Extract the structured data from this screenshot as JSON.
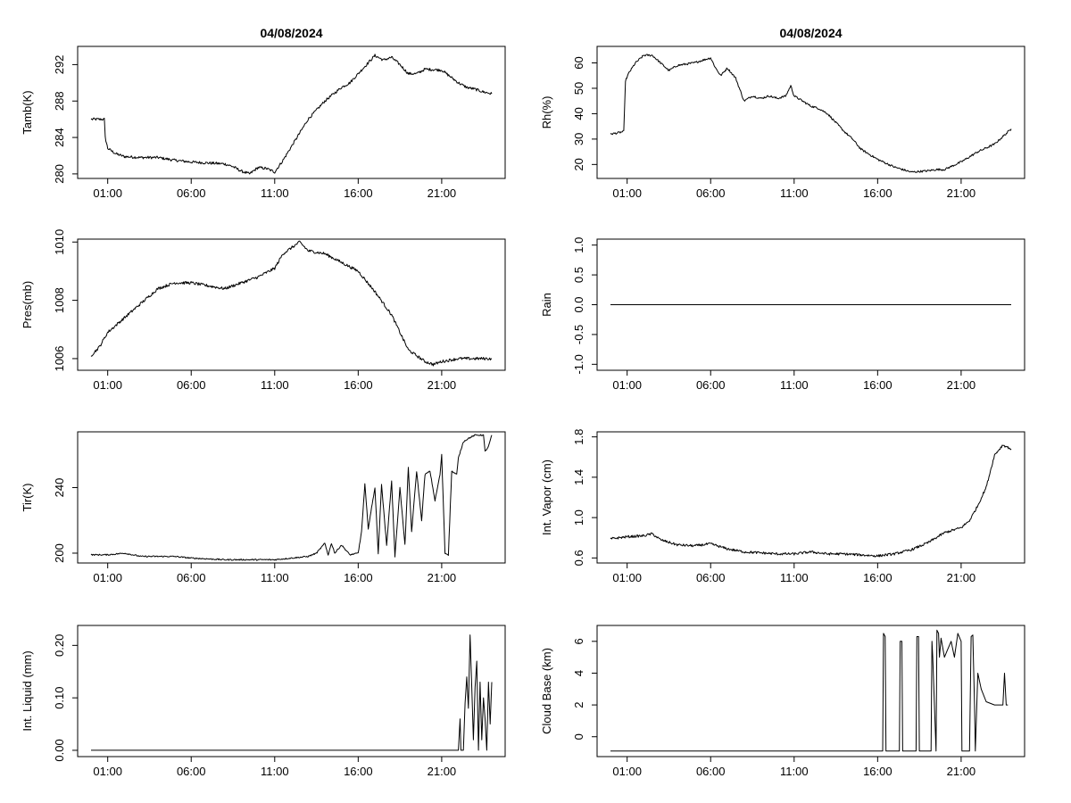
{
  "colors": {
    "background": "#ffffff",
    "line": "#000000"
  },
  "chart_data": [
    {
      "type": "line",
      "title": "04/08/2024",
      "ylabel": "Tamb(K)",
      "xlabel": "",
      "xlim": [
        -0.8,
        24.8
      ],
      "ylim": [
        279.5,
        294.0
      ],
      "xticks": [
        1,
        6,
        11,
        16,
        21
      ],
      "xticklabels": [
        "01:00",
        "06:00",
        "11:00",
        "16:00",
        "21:00"
      ],
      "yticks": [
        280,
        284,
        288,
        292
      ],
      "yticklabels": [
        "280",
        "284",
        "288",
        "292"
      ],
      "noise": 0.15,
      "series": [
        {
          "name": "Tamb",
          "x": [
            0,
            0.5,
            0.8,
            0.85,
            1.0,
            1.5,
            2,
            3,
            4,
            5,
            6,
            7,
            8,
            8.5,
            9.0,
            9.5,
            10.0,
            10.5,
            11.0,
            11.5,
            12,
            13,
            14,
            15,
            15.5,
            16,
            16.5,
            17,
            17.5,
            18,
            18.5,
            19,
            19.5,
            20,
            21,
            22,
            22.5,
            23,
            23.5,
            24
          ],
          "y": [
            286,
            286,
            286,
            284,
            282.8,
            282.2,
            281.9,
            281.8,
            281.8,
            281.5,
            281.3,
            281.2,
            281.1,
            280.8,
            280.3,
            280.0,
            280.7,
            280.6,
            280.2,
            281.5,
            283,
            286,
            288,
            289.5,
            290,
            291,
            292,
            293,
            292.5,
            292.8,
            292,
            291,
            291,
            291.5,
            291.4,
            290,
            289.5,
            289.3,
            289,
            288.8
          ]
        }
      ]
    },
    {
      "type": "line",
      "title": "04/08/2024",
      "ylabel": "Rh(%)",
      "xlabel": "",
      "xlim": [
        -0.8,
        24.8
      ],
      "ylim": [
        14.5,
        66.5
      ],
      "xticks": [
        1,
        6,
        11,
        16,
        21
      ],
      "xticklabels": [
        "01:00",
        "06:00",
        "11:00",
        "16:00",
        "21:00"
      ],
      "yticks": [
        20,
        30,
        40,
        50,
        60
      ],
      "yticklabels": [
        "20",
        "30",
        "40",
        "50",
        "60"
      ],
      "noise": 0.4,
      "series": [
        {
          "name": "Rh",
          "x": [
            0,
            0.5,
            0.8,
            0.9,
            1.1,
            1.5,
            2,
            2.5,
            3,
            3.5,
            4,
            5,
            6,
            6.3,
            6.6,
            7,
            7.5,
            8,
            8.5,
            9,
            9.5,
            10,
            10.5,
            10.8,
            11,
            12,
            12.5,
            13,
            14,
            14.5,
            15,
            16,
            17,
            18,
            19,
            19.5,
            20,
            21,
            22,
            23,
            24
          ],
          "y": [
            32,
            32.5,
            33,
            53,
            56,
            60,
            63,
            63,
            60,
            57,
            59,
            60,
            62,
            58,
            55,
            58,
            54,
            45,
            47,
            46,
            47,
            46,
            47,
            51,
            47,
            43,
            42,
            40,
            33,
            30,
            26,
            22,
            19,
            17,
            17.5,
            18,
            18,
            21,
            25,
            28,
            34
          ]
        }
      ]
    },
    {
      "type": "line",
      "title": "",
      "ylabel": "Pres(mb)",
      "xlabel": "",
      "xlim": [
        -0.8,
        24.8
      ],
      "ylim": [
        1005.6,
        1010.1
      ],
      "xticks": [
        1,
        6,
        11,
        16,
        21
      ],
      "xticklabels": [
        "01:00",
        "06:00",
        "11:00",
        "16:00",
        "21:00"
      ],
      "yticks": [
        1006,
        1008,
        1010
      ],
      "yticklabels": [
        "1006",
        "1008",
        "1010"
      ],
      "noise": 0.05,
      "series": [
        {
          "name": "Pres",
          "x": [
            0,
            0.5,
            1,
            2,
            3,
            4,
            5,
            6,
            7,
            8,
            9,
            10,
            11,
            11.5,
            12,
            12.5,
            13,
            14,
            15,
            16,
            17,
            18,
            18.5,
            19,
            20,
            20.5,
            21,
            22,
            23,
            24
          ],
          "y": [
            1006.1,
            1006.4,
            1006.9,
            1007.4,
            1007.9,
            1008.4,
            1008.6,
            1008.6,
            1008.5,
            1008.4,
            1008.6,
            1008.8,
            1009.1,
            1009.6,
            1009.8,
            1010.0,
            1009.7,
            1009.6,
            1009.3,
            1009.0,
            1008.3,
            1007.5,
            1006.9,
            1006.3,
            1005.9,
            1005.8,
            1005.9,
            1006.0,
            1006.0,
            1006.0
          ]
        }
      ]
    },
    {
      "type": "line",
      "title": "",
      "ylabel": "Rain",
      "xlabel": "",
      "xlim": [
        -0.8,
        24.8
      ],
      "ylim": [
        -1.1,
        1.1
      ],
      "xticks": [
        1,
        6,
        11,
        16,
        21
      ],
      "xticklabels": [
        "01:00",
        "06:00",
        "11:00",
        "16:00",
        "21:00"
      ],
      "yticks": [
        -1.0,
        -0.5,
        0.0,
        0.5,
        1.0
      ],
      "yticklabels": [
        "-1.0",
        "-0.5",
        "0.0",
        "0.5",
        "1.0"
      ],
      "noise": 0,
      "series": [
        {
          "name": "Rain",
          "x": [
            0,
            24
          ],
          "y": [
            0,
            0
          ]
        }
      ]
    },
    {
      "type": "line",
      "title": "",
      "ylabel": "Tir(K)",
      "xlabel": "",
      "xlim": [
        -0.8,
        24.8
      ],
      "ylim": [
        194,
        274
      ],
      "xticks": [
        1,
        6,
        11,
        16,
        21
      ],
      "xticklabels": [
        "01:00",
        "06:00",
        "11:00",
        "16:00",
        "21:00"
      ],
      "yticks": [
        200,
        240
      ],
      "yticklabels": [
        "200",
        "240"
      ],
      "noise": 0.4,
      "series": [
        {
          "name": "Tir",
          "x": [
            0,
            1,
            2,
            2.5,
            3,
            5,
            6,
            8,
            10,
            11,
            12,
            13,
            13.5,
            14,
            14.2,
            14.4,
            14.6,
            15,
            15.5,
            16,
            16.2,
            16.4,
            16.6,
            17,
            17.2,
            17.4,
            17.7,
            18,
            18.2,
            18.5,
            18.8,
            19,
            19.2,
            19.5,
            19.8,
            20,
            20.3,
            20.6,
            20.9,
            21,
            21.2,
            21.4,
            21.6,
            21.9,
            22,
            22.3,
            22.6,
            23,
            23.3,
            23.5,
            23.6,
            23.8,
            24
          ],
          "y": [
            199,
            199,
            200,
            199,
            198,
            198,
            197,
            196,
            196,
            196,
            197,
            198,
            200,
            206,
            199,
            206,
            200,
            205,
            199,
            200,
            213,
            242,
            215,
            240,
            200,
            242,
            205,
            244,
            198,
            240,
            205,
            252,
            213,
            250,
            220,
            248,
            250,
            232,
            248,
            260,
            200,
            199,
            250,
            248,
            258,
            268,
            270,
            272,
            272,
            272,
            262,
            265,
            272
          ]
        }
      ]
    },
    {
      "type": "line",
      "title": "",
      "ylabel": "Int. Vapor (cm)",
      "xlabel": "",
      "xlim": [
        -0.8,
        24.8
      ],
      "ylim": [
        0.55,
        1.85
      ],
      "xticks": [
        1,
        6,
        11,
        16,
        21
      ],
      "xticklabels": [
        "01:00",
        "06:00",
        "11:00",
        "16:00",
        "21:00"
      ],
      "yticks": [
        0.6,
        1.0,
        1.4,
        1.8
      ],
      "yticklabels": [
        "0.6",
        "1.0",
        "1.4",
        "1.8"
      ],
      "noise": 0.012,
      "series": [
        {
          "name": "IntVapor",
          "x": [
            0,
            1,
            2,
            2.5,
            3,
            4,
            5,
            6,
            7,
            8,
            9,
            10,
            11,
            12,
            13,
            14,
            15,
            16,
            17,
            18,
            19,
            20,
            21,
            21.5,
            22,
            22.5,
            23,
            23.5,
            24
          ],
          "y": [
            0.79,
            0.81,
            0.82,
            0.84,
            0.78,
            0.73,
            0.72,
            0.74,
            0.69,
            0.66,
            0.65,
            0.64,
            0.64,
            0.66,
            0.64,
            0.64,
            0.63,
            0.62,
            0.64,
            0.68,
            0.75,
            0.85,
            0.9,
            0.97,
            1.12,
            1.3,
            1.62,
            1.72,
            1.68
          ]
        }
      ]
    },
    {
      "type": "line",
      "title": "",
      "ylabel": "Int. Liquid (mm)",
      "xlabel": "",
      "xlim": [
        -0.8,
        24.8
      ],
      "ylim": [
        -0.012,
        0.238
      ],
      "xticks": [
        1,
        6,
        11,
        16,
        21
      ],
      "xticklabels": [
        "01:00",
        "06:00",
        "11:00",
        "16:00",
        "21:00"
      ],
      "yticks": [
        0.0,
        0.1,
        0.2
      ],
      "yticklabels": [
        "0.00",
        "0.10",
        "0.20"
      ],
      "noise": 0,
      "series": [
        {
          "name": "IntLiquid",
          "x": [
            0,
            22,
            22.1,
            22.15,
            22.3,
            22.4,
            22.5,
            22.6,
            22.7,
            22.8,
            22.9,
            23.0,
            23.1,
            23.2,
            23.3,
            23.4,
            23.5,
            23.6,
            23.7,
            23.8,
            23.9,
            24
          ],
          "y": [
            0,
            0,
            0.06,
            0,
            0.0,
            0.09,
            0.14,
            0.08,
            0.22,
            0.12,
            0.02,
            0.12,
            0.17,
            0.0,
            0.13,
            0.02,
            0.1,
            0.06,
            0.0,
            0.13,
            0.05,
            0.13
          ]
        }
      ]
    },
    {
      "type": "line",
      "title": "",
      "ylabel": "Cloud Base (km)",
      "xlabel": "",
      "xlim": [
        -0.8,
        24.8
      ],
      "ylim": [
        -1.25,
        7.0
      ],
      "xticks": [
        1,
        6,
        11,
        16,
        21
      ],
      "xticklabels": [
        "01:00",
        "06:00",
        "11:00",
        "16:00",
        "21:00"
      ],
      "yticks": [
        0,
        2,
        4,
        6
      ],
      "yticklabels": [
        "0",
        "2",
        "4",
        "6"
      ],
      "noise": 0,
      "series": [
        {
          "name": "CloudBase",
          "x": [
            0,
            16.3,
            16.35,
            16.45,
            16.5,
            17.3,
            17.35,
            17.45,
            17.5,
            18.3,
            18.35,
            18.45,
            18.5,
            19.2,
            19.25,
            19.3,
            19.5,
            19.55,
            19.65,
            19.7,
            19.8,
            20.0,
            20.2,
            20.4,
            20.6,
            20.8,
            21.0,
            21.05,
            21.1,
            21.5,
            21.6,
            21.7,
            21.8,
            21.85,
            22.0,
            22.2,
            22.5,
            23.0,
            23.5,
            23.6,
            23.7,
            23.8
          ],
          "y": [
            -0.9,
            -0.9,
            6.5,
            6.3,
            -0.9,
            -0.9,
            6.0,
            6.0,
            -0.9,
            -0.9,
            6.3,
            6.3,
            -0.9,
            -0.9,
            6.0,
            5.0,
            -0.9,
            6.7,
            6.5,
            5.0,
            6.2,
            5.0,
            5.5,
            6.0,
            5.0,
            6.5,
            6.0,
            -0.9,
            -0.9,
            -0.9,
            6.3,
            6.4,
            2.0,
            -0.9,
            4.0,
            3.0,
            2.2,
            2.0,
            2.0,
            4.0,
            2.0,
            2.0
          ]
        }
      ]
    }
  ]
}
